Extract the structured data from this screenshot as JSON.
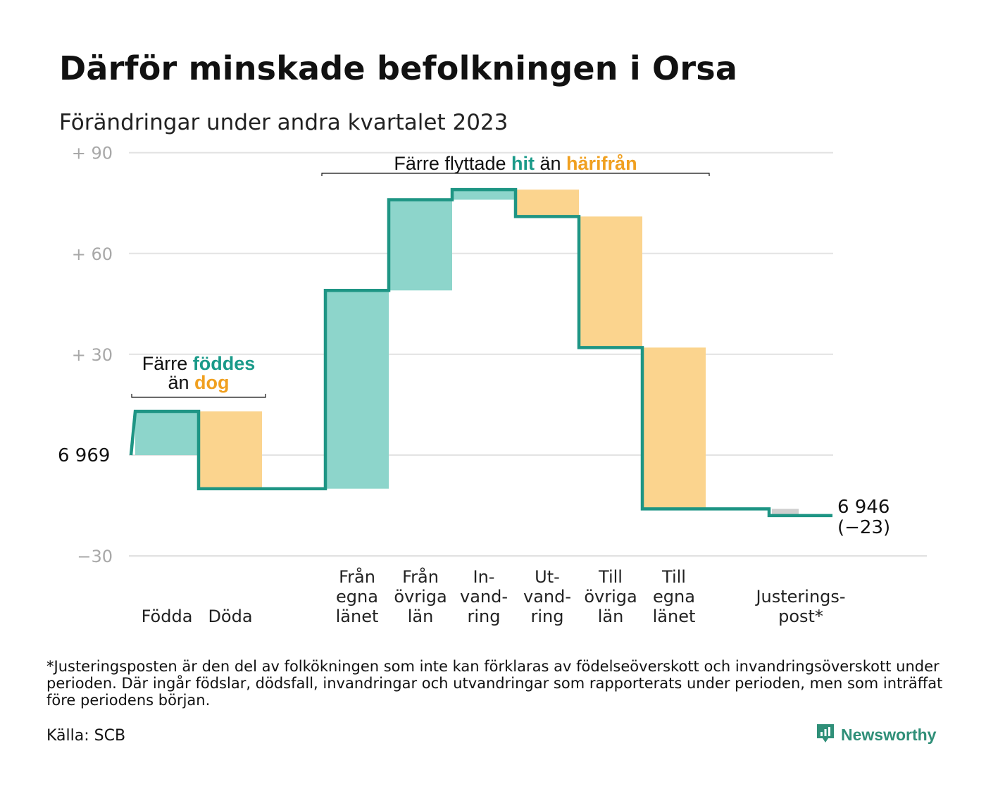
{
  "title": "Därför minskade befolkningen i Orsa",
  "subtitle": "Förändringar under andra kvartalet 2023",
  "colors": {
    "increase": "#8dd5cb",
    "decrease": "#fbd48e",
    "adjustment": "#cfcfcf",
    "line": "#1e9584",
    "accent_teal": "#1a9a89",
    "accent_orange": "#f0a020",
    "grid": "#e3e3e3",
    "brand": "#2f8f78"
  },
  "chart_data": {
    "type": "waterfall",
    "start_value": 6969,
    "start_label": "6  969",
    "end_value": 6946,
    "end_label": "6 946",
    "end_change_label": "(−23)",
    "ylim": [
      -30,
      90
    ],
    "yticks": [
      {
        "value": 90,
        "label": "+  90"
      },
      {
        "value": 60,
        "label": "+  60"
      },
      {
        "value": 30,
        "label": "+  30"
      },
      {
        "value": 0,
        "label": "6  969"
      },
      {
        "value": -30,
        "label": "−30"
      }
    ],
    "steps": [
      {
        "category": "Födda",
        "label_lines": [
          "Födda"
        ],
        "change": 13,
        "kind": "increase"
      },
      {
        "category": "Döda",
        "label_lines": [
          "Döda"
        ],
        "change": -23,
        "kind": "decrease"
      },
      {
        "category": "",
        "label_lines": [],
        "change": 0,
        "kind": "none"
      },
      {
        "category": "Från egna länet",
        "label_lines": [
          "Från",
          "egna",
          "länet"
        ],
        "change": 59,
        "kind": "increase"
      },
      {
        "category": "Från övriga län",
        "label_lines": [
          "Från",
          "övriga",
          "län"
        ],
        "change": 27,
        "kind": "increase"
      },
      {
        "category": "Invandring",
        "label_lines": [
          "In-",
          "vand-",
          "ring"
        ],
        "change": 3,
        "kind": "increase"
      },
      {
        "category": "Utvandring",
        "label_lines": [
          "Ut-",
          "vand-",
          "ring"
        ],
        "change": -8,
        "kind": "decrease"
      },
      {
        "category": "Till övriga län",
        "label_lines": [
          "Till",
          "övriga",
          "län"
        ],
        "change": -39,
        "kind": "decrease"
      },
      {
        "category": "Till egna länet",
        "label_lines": [
          "Till",
          "egna",
          "länet"
        ],
        "change": -48,
        "kind": "decrease"
      },
      {
        "category": "",
        "label_lines": [],
        "change": 0,
        "kind": "none"
      },
      {
        "category": "Justeringspost*",
        "label_lines": [
          "Justerings-",
          "post*"
        ],
        "change": -2,
        "kind": "adjustment"
      }
    ],
    "annotations": [
      {
        "id": "births",
        "line1": {
          "plain": "Färre",
          "highlight": "föddes",
          "color": "teal"
        },
        "line2": {
          "plain": "än",
          "highlight": "dog",
          "color": "orange"
        },
        "span": [
          "Födda",
          "Döda"
        ]
      },
      {
        "id": "migration",
        "parts": [
          {
            "text": "Färre flyttade",
            "style": "plain"
          },
          {
            "text": "hit",
            "style": "teal"
          },
          {
            "text": "än",
            "style": "plain"
          },
          {
            "text": "härifrån",
            "style": "orange"
          }
        ],
        "span": [
          "Från egna länet",
          "Till egna länet"
        ]
      }
    ]
  },
  "footnote": "*Justeringsposten är den del av folkökningen som inte kan förklaras av födelseöverskott och invandringsöverskott under perioden. Där ingår födslar, dödsfall, invandringar och utvandringar som rapporterats under perioden, men som inträffat före periodens början.",
  "source": "Källa: SCB",
  "brand": {
    "name": "Newsworthy",
    "icon": "newsworthy-logo-icon"
  }
}
